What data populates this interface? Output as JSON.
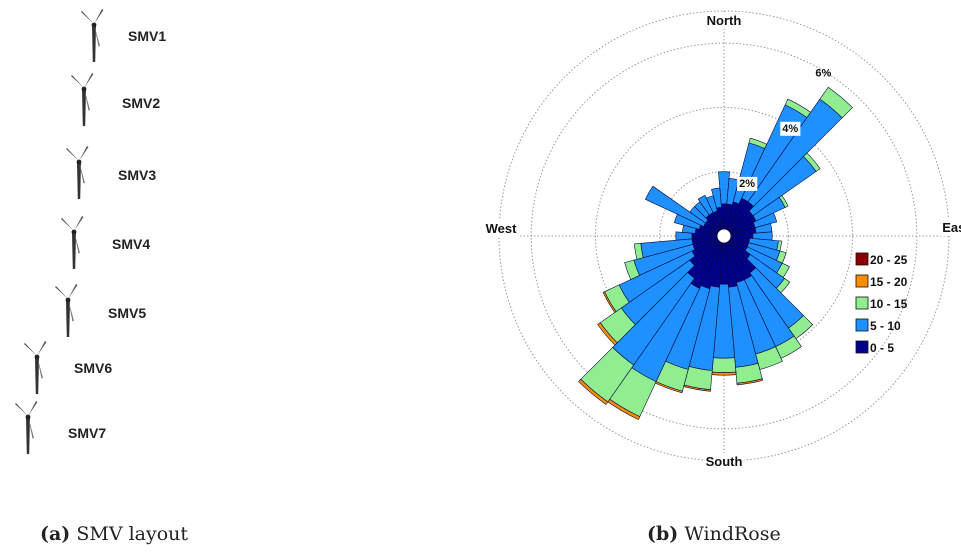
{
  "layout_panel": {
    "turbines": [
      {
        "label": "SMV1"
      },
      {
        "label": "SMV2"
      },
      {
        "label": "SMV3"
      },
      {
        "label": "SMV4"
      },
      {
        "label": "SMV5"
      },
      {
        "label": "SMV6"
      },
      {
        "label": "SMV7"
      }
    ],
    "caption_tag": "(a)",
    "caption_text": "SMV layout"
  },
  "rose_panel": {
    "caption_tag": "(b)",
    "caption_text": "WindRose"
  },
  "chart_data": {
    "type": "windrose",
    "directions": [
      "North",
      "East",
      "South",
      "West"
    ],
    "ring_labels": [
      "2%",
      "4%",
      "6%"
    ],
    "ring_values": [
      2,
      4,
      6
    ],
    "rmax": 7,
    "sector_count": 36,
    "bins": [
      {
        "name": "0 - 5",
        "color": "#00008b"
      },
      {
        "name": "5 - 10",
        "color": "#1e90ff"
      },
      {
        "name": "10 - 15",
        "color": "#90ee90"
      },
      {
        "name": "15 - 20",
        "color": "#ff8c00"
      },
      {
        "name": "20 - 25",
        "color": "#8b0000"
      }
    ],
    "sectors": [
      {
        "dir": 0,
        "values": [
          1.0,
          1.0,
          0.0,
          0,
          0
        ]
      },
      {
        "dir": 10,
        "values": [
          1.0,
          0.8,
          0.0,
          0,
          0
        ]
      },
      {
        "dir": 20,
        "values": [
          1.1,
          1.9,
          0.15,
          0,
          0
        ]
      },
      {
        "dir": 30,
        "values": [
          1.3,
          3.2,
          0.2,
          0,
          0
        ]
      },
      {
        "dir": 40,
        "values": [
          1.3,
          3.9,
          0.45,
          0,
          0
        ]
      },
      {
        "dir": 50,
        "values": [
          1.1,
          2.4,
          0.15,
          0,
          0
        ]
      },
      {
        "dir": 60,
        "values": [
          1.1,
          1.0,
          0.1,
          0,
          0
        ]
      },
      {
        "dir": 70,
        "values": [
          1.0,
          0.7,
          0.0,
          0,
          0
        ]
      },
      {
        "dir": 80,
        "values": [
          1.0,
          0.5,
          0.0,
          0,
          0
        ]
      },
      {
        "dir": 90,
        "values": [
          0.9,
          0.6,
          0.0,
          0,
          0
        ]
      },
      {
        "dir": 100,
        "values": [
          0.8,
          0.9,
          0.1,
          0,
          0
        ]
      },
      {
        "dir": 110,
        "values": [
          0.8,
          1.0,
          0.2,
          0,
          0
        ]
      },
      {
        "dir": 120,
        "values": [
          0.8,
          1.2,
          0.25,
          0,
          0
        ]
      },
      {
        "dir": 130,
        "values": [
          1.0,
          1.3,
          0.2,
          0,
          0
        ]
      },
      {
        "dir": 140,
        "values": [
          1.4,
          2.1,
          0.4,
          0,
          0
        ]
      },
      {
        "dir": 150,
        "values": [
          1.5,
          2.3,
          0.4,
          0,
          0
        ]
      },
      {
        "dir": 160,
        "values": [
          1.5,
          2.3,
          0.5,
          0,
          0
        ]
      },
      {
        "dir": 170,
        "values": [
          1.6,
          2.5,
          0.5,
          0.05,
          0
        ]
      },
      {
        "dir": 180,
        "values": [
          1.5,
          2.3,
          0.45,
          0.08,
          0
        ]
      },
      {
        "dir": 190,
        "values": [
          1.6,
          2.6,
          0.6,
          0.05,
          0
        ]
      },
      {
        "dir": 200,
        "values": [
          1.7,
          2.6,
          0.7,
          0.05,
          0
        ]
      },
      {
        "dir": 210,
        "values": [
          1.8,
          3.2,
          1.2,
          0.1,
          0
        ]
      },
      {
        "dir": 220,
        "values": [
          1.6,
          3.3,
          1.4,
          0.1,
          0
        ]
      },
      {
        "dir": 230,
        "values": [
          1.3,
          2.6,
          0.8,
          0.1,
          0
        ]
      },
      {
        "dir": 240,
        "values": [
          1.1,
          2.5,
          0.5,
          0.05,
          0
        ]
      },
      {
        "dir": 250,
        "values": [
          1.0,
          1.9,
          0.3,
          0,
          0
        ]
      },
      {
        "dir": 260,
        "values": [
          1.0,
          1.6,
          0.2,
          0,
          0
        ]
      },
      {
        "dir": 270,
        "values": [
          1.0,
          0.5,
          0.0,
          0,
          0
        ]
      },
      {
        "dir": 280,
        "values": [
          0.9,
          0.4,
          0.0,
          0,
          0
        ]
      },
      {
        "dir": 290,
        "values": [
          0.8,
          0.8,
          0.0,
          0,
          0
        ]
      },
      {
        "dir": 300,
        "values": [
          0.7,
          2.0,
          0.0,
          0,
          0
        ]
      },
      {
        "dir": 310,
        "values": [
          0.7,
          0.6,
          0.0,
          0,
          0
        ]
      },
      {
        "dir": 320,
        "values": [
          0.8,
          0.5,
          0.0,
          0,
          0
        ]
      },
      {
        "dir": 330,
        "values": [
          0.8,
          0.6,
          0.0,
          0,
          0
        ]
      },
      {
        "dir": 340,
        "values": [
          0.8,
          0.5,
          0.0,
          0,
          0
        ]
      },
      {
        "dir": 350,
        "values": [
          0.9,
          0.6,
          0.0,
          0,
          0
        ]
      }
    ],
    "legend_order": [
      "20 - 25",
      "15 - 20",
      "10 - 15",
      "5 - 10",
      "0 - 5"
    ],
    "legend_placement": "right"
  }
}
